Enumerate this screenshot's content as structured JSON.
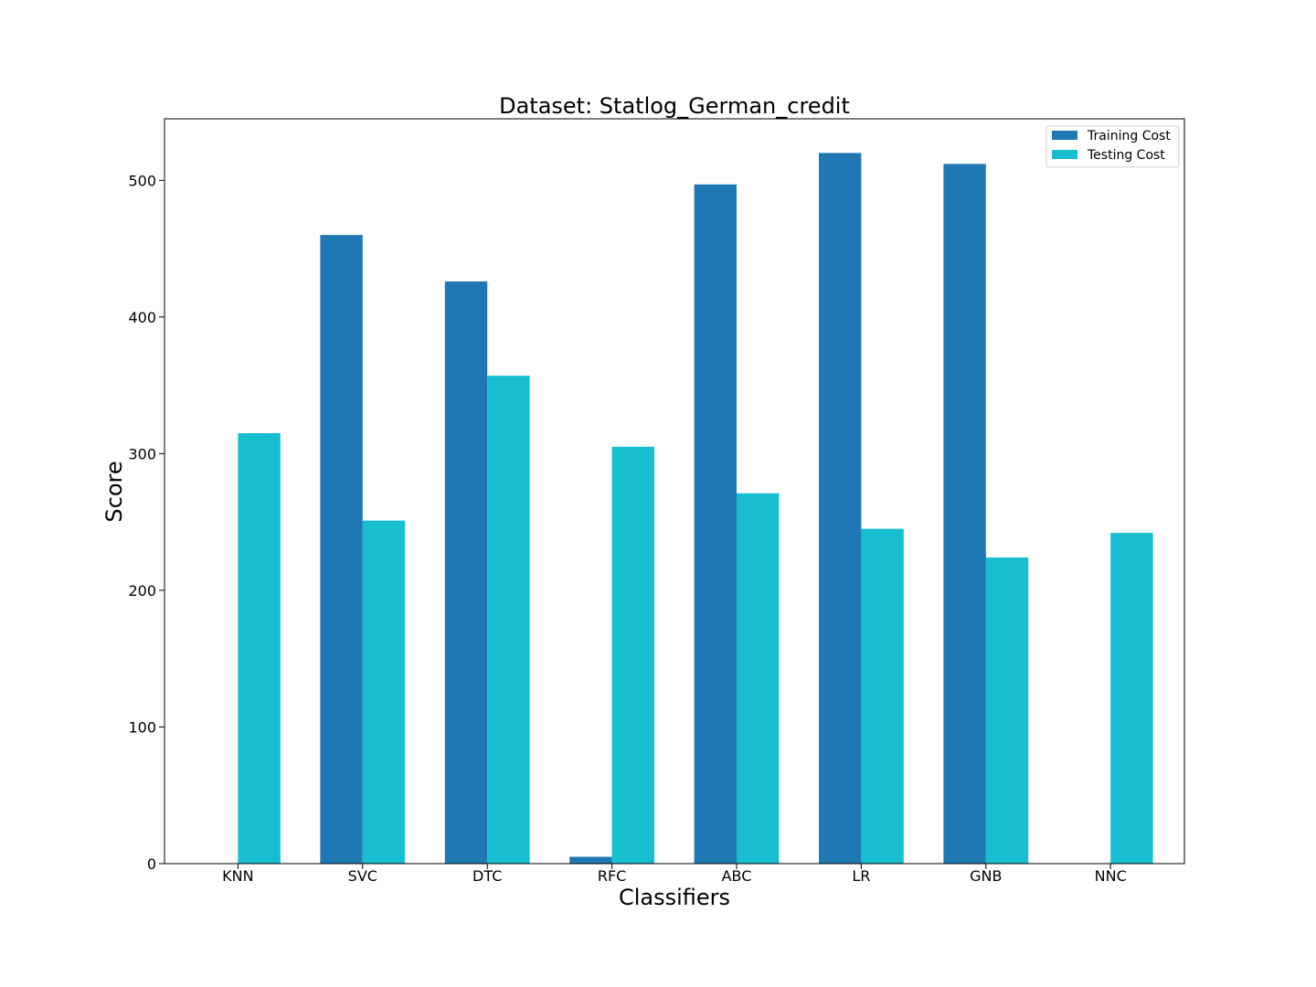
{
  "chart_data": {
    "type": "bar",
    "title": "Dataset: Statlog_German_credit",
    "xlabel": "Classifiers",
    "ylabel": "Score",
    "categories": [
      "KNN",
      "SVC",
      "DTC",
      "RFC",
      "ABC",
      "LR",
      "GNB",
      "NNC"
    ],
    "ylim": [
      0,
      545
    ],
    "yticks": [
      0,
      100,
      200,
      300,
      400,
      500
    ],
    "grid": false,
    "legend_position": "top-right",
    "series": [
      {
        "name": "Training Cost",
        "color": "#1f77b4",
        "values": [
          0,
          460,
          426,
          5,
          497,
          520,
          512,
          0
        ]
      },
      {
        "name": "Testing Cost",
        "color": "#17becf",
        "values": [
          315,
          251,
          357,
          305,
          271,
          245,
          224,
          242
        ]
      }
    ]
  }
}
